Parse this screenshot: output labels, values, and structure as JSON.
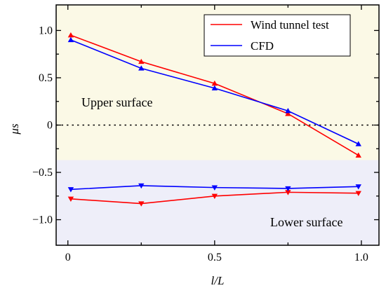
{
  "chart_data": {
    "type": "line",
    "xlabel": "l/L",
    "ylabel": "μs",
    "xlim": [
      -0.04,
      1.06
    ],
    "ylim": [
      -1.27,
      1.27
    ],
    "x_ticks": [
      0,
      0.5,
      1.0
    ],
    "x_tick_labels": [
      "0",
      "0.5",
      "1.0"
    ],
    "y_ticks": [
      1.0,
      0.5,
      0,
      -0.5,
      -1.0
    ],
    "y_tick_labels": [
      "1.0",
      "0.5",
      "0",
      "−0.5",
      "−1.0"
    ],
    "x_minor_ticks": [
      0.25,
      0.75
    ],
    "y_minor_ticks": [
      0.75,
      0.25,
      -0.25,
      -0.75
    ],
    "zero_line": {
      "y": 0,
      "style": "dotted",
      "color": "#000000"
    },
    "regions": [
      {
        "label": "Upper surface",
        "y_range": [
          -0.37,
          1.27
        ],
        "color": "#fbf9e6"
      },
      {
        "label": "Lower surface",
        "y_range": [
          -1.27,
          -0.37
        ],
        "color": "#eeeef9"
      }
    ],
    "legend": {
      "position": "top-right"
    },
    "series": [
      {
        "name": "Wind tunnel test",
        "color": "#ff0000",
        "marker": "triangle-up",
        "x": [
          0.01,
          0.25,
          0.5,
          0.75,
          0.99
        ],
        "y": [
          0.95,
          0.67,
          0.44,
          0.12,
          -0.32
        ]
      },
      {
        "name": "CFD",
        "color": "#0000ff",
        "marker": "triangle-up",
        "x": [
          0.01,
          0.25,
          0.5,
          0.75,
          0.99
        ],
        "y": [
          0.9,
          0.6,
          0.39,
          0.15,
          -0.2
        ]
      },
      {
        "color": "#ff0000",
        "marker": "triangle-down",
        "x": [
          0.01,
          0.25,
          0.5,
          0.75,
          0.99
        ],
        "y": [
          -0.78,
          -0.83,
          -0.75,
          -0.71,
          -0.72
        ]
      },
      {
        "color": "#0000ff",
        "marker": "triangle-down",
        "x": [
          0.01,
          0.25,
          0.5,
          0.75,
          0.99
        ],
        "y": [
          -0.68,
          -0.64,
          -0.66,
          -0.67,
          -0.65
        ]
      }
    ]
  }
}
